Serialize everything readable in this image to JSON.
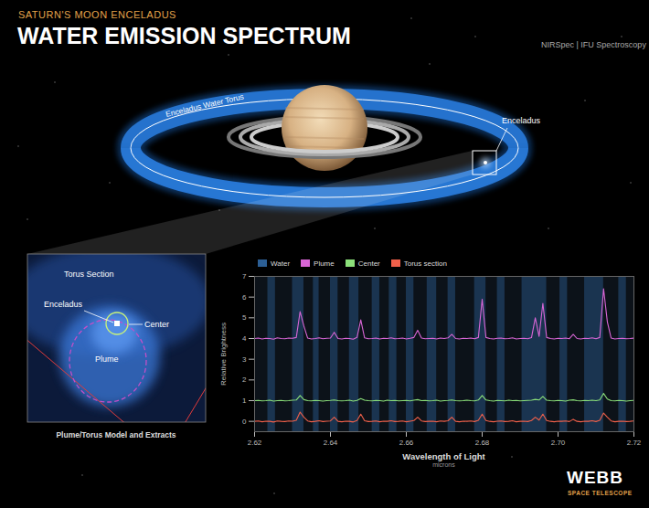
{
  "header": {
    "kicker": "SATURN'S MOON ENCELADUS",
    "title": "WATER EMISSION SPECTRUM",
    "instrument": "NIRSpec | IFU Spectroscopy"
  },
  "illustration": {
    "torus_label": "Enceladus Water Torus",
    "moon_label": "Enceladus"
  },
  "inset": {
    "labels": [
      "Torus Section",
      "Enceladus",
      "Center",
      "Plume"
    ],
    "caption": "Plume/Torus Model and Extracts"
  },
  "logo": {
    "name": "WEBB",
    "subtitle": "SPACE TELESCOPE"
  },
  "chart_data": {
    "type": "line",
    "y_label": "Relative Brightness",
    "x_label": "Wavelength of Light",
    "x_unit": "microns",
    "xlim": [
      2.62,
      2.72
    ],
    "xticks": [
      2.62,
      2.64,
      2.66,
      2.68,
      {
        "value": 2.7,
        "label": "2.70"
      },
      2.72
    ],
    "ylim": [
      -0.5,
      7
    ],
    "yticks": [
      0,
      1,
      2,
      3,
      4,
      5,
      6,
      7
    ],
    "grid": false,
    "water_bands_name": "Water",
    "water_bands_color": "#2c5f95",
    "water_bands": [
      [
        2.6235,
        2.6255
      ],
      [
        2.63,
        2.633
      ],
      [
        2.6355,
        2.637
      ],
      [
        2.64,
        2.642
      ],
      [
        2.645,
        2.6475
      ],
      [
        2.651,
        2.653
      ],
      [
        2.6555,
        2.6575
      ],
      [
        2.66,
        2.662
      ],
      [
        2.6655,
        2.668
      ],
      [
        2.671,
        2.673
      ],
      [
        2.678,
        2.681
      ],
      [
        2.684,
        2.686
      ],
      [
        2.6905,
        2.697
      ],
      [
        2.7005,
        2.7025
      ],
      [
        2.707,
        2.712
      ],
      [
        2.716,
        2.718
      ]
    ],
    "x": [
      2.62,
      2.621,
      2.622,
      2.623,
      2.624,
      2.625,
      2.626,
      2.627,
      2.628,
      2.629,
      2.63,
      2.631,
      2.632,
      2.633,
      2.634,
      2.635,
      2.636,
      2.637,
      2.638,
      2.639,
      2.64,
      2.641,
      2.642,
      2.643,
      2.644,
      2.645,
      2.646,
      2.647,
      2.648,
      2.649,
      2.65,
      2.651,
      2.652,
      2.653,
      2.654,
      2.655,
      2.656,
      2.657,
      2.658,
      2.659,
      2.66,
      2.661,
      2.662,
      2.663,
      2.664,
      2.665,
      2.666,
      2.667,
      2.668,
      2.669,
      2.67,
      2.671,
      2.672,
      2.673,
      2.674,
      2.675,
      2.676,
      2.677,
      2.678,
      2.679,
      2.68,
      2.681,
      2.682,
      2.683,
      2.684,
      2.685,
      2.686,
      2.687,
      2.688,
      2.689,
      2.69,
      2.691,
      2.692,
      2.693,
      2.694,
      2.695,
      2.696,
      2.697,
      2.698,
      2.699,
      2.7,
      2.701,
      2.702,
      2.703,
      2.704,
      2.705,
      2.706,
      2.707,
      2.708,
      2.709,
      2.71,
      2.711,
      2.712,
      2.713,
      2.714,
      2.715,
      2.716,
      2.717,
      2.718,
      2.719,
      2.72
    ],
    "series": [
      {
        "name": "Plume",
        "color": "#d966d6",
        "values": [
          4.0,
          4.02,
          3.98,
          4.01,
          4.0,
          3.97,
          4.03,
          4.0,
          3.99,
          4.02,
          4.01,
          4.05,
          5.3,
          4.6,
          4.02,
          3.98,
          4.0,
          4.03,
          3.99,
          4.01,
          4.02,
          4.3,
          4.0,
          3.98,
          4.01,
          4.0,
          3.97,
          4.05,
          4.9,
          4.03,
          3.99,
          4.0,
          4.02,
          3.98,
          4.01,
          4.0,
          4.03,
          3.99,
          4.0,
          4.02,
          3.98,
          4.01,
          4.05,
          4.4,
          4.02,
          3.99,
          4.0,
          4.01,
          3.98,
          4.02,
          4.0,
          4.03,
          4.2,
          4.0,
          3.98,
          4.01,
          4.0,
          4.02,
          3.99,
          4.05,
          5.9,
          4.05,
          4.0,
          3.98,
          4.01,
          4.02,
          3.99,
          4.0,
          4.03,
          3.98,
          4.0,
          4.01,
          3.99,
          4.04,
          5.0,
          4.1,
          5.7,
          4.05,
          4.0,
          3.98,
          4.01,
          4.0,
          4.02,
          3.99,
          4.2,
          4.0,
          3.98,
          4.01,
          4.0,
          4.03,
          3.99,
          4.05,
          6.4,
          4.8,
          4.02,
          3.98,
          4.0,
          4.01,
          3.99,
          4.0,
          4.02
        ]
      },
      {
        "name": "Center",
        "color": "#8be07a",
        "values": [
          1.0,
          1.01,
          0.99,
          1.0,
          1.02,
          0.98,
          1.0,
          1.01,
          0.99,
          1.0,
          1.02,
          1.03,
          1.25,
          1.05,
          1.0,
          0.99,
          1.01,
          1.0,
          0.98,
          1.0,
          1.01,
          1.03,
          1.0,
          0.99,
          1.0,
          1.02,
          0.98,
          1.01,
          1.1,
          1.02,
          1.0,
          0.99,
          1.01,
          1.0,
          0.98,
          1.02,
          1.0,
          1.01,
          0.99,
          1.0,
          1.01,
          0.99,
          1.02,
          1.05,
          1.0,
          1.01,
          0.99,
          1.0,
          1.02,
          0.98,
          1.0,
          1.01,
          1.03,
          1.0,
          0.99,
          1.0,
          1.02,
          1.0,
          0.99,
          1.03,
          1.25,
          1.03,
          1.0,
          0.98,
          1.01,
          1.0,
          0.99,
          1.02,
          1.0,
          1.01,
          0.99,
          1.0,
          1.01,
          1.02,
          1.06,
          1.03,
          1.2,
          1.02,
          1.0,
          0.99,
          1.01,
          1.0,
          0.98,
          1.02,
          1.04,
          1.0,
          0.99,
          1.01,
          1.0,
          1.02,
          1.0,
          1.03,
          1.35,
          1.08,
          1.0,
          0.99,
          1.01,
          1.0,
          0.98,
          1.0,
          1.01
        ]
      },
      {
        "name": "Torus section",
        "color": "#f0604a",
        "values": [
          0.0,
          0.02,
          -0.02,
          0.01,
          0.0,
          -0.03,
          0.02,
          0.0,
          -0.01,
          0.02,
          0.01,
          0.05,
          0.45,
          0.2,
          0.02,
          -0.02,
          0.0,
          0.03,
          -0.01,
          0.01,
          0.02,
          0.2,
          0.0,
          -0.02,
          0.01,
          0.0,
          -0.03,
          0.04,
          0.35,
          0.03,
          -0.01,
          0.0,
          0.02,
          -0.02,
          0.01,
          0.0,
          0.03,
          -0.01,
          0.0,
          0.02,
          -0.02,
          0.01,
          0.04,
          0.2,
          0.02,
          -0.01,
          0.0,
          0.01,
          -0.02,
          0.02,
          0.0,
          0.03,
          0.2,
          0.0,
          -0.02,
          0.01,
          0.0,
          0.02,
          -0.01,
          0.05,
          0.35,
          0.04,
          0.0,
          -0.02,
          0.01,
          0.02,
          -0.01,
          0.0,
          0.03,
          -0.02,
          0.0,
          0.01,
          -0.01,
          0.04,
          0.2,
          0.06,
          0.35,
          0.04,
          0.0,
          -0.02,
          0.01,
          0.0,
          0.02,
          -0.01,
          0.1,
          0.0,
          -0.02,
          0.01,
          0.0,
          0.03,
          -0.01,
          0.05,
          0.4,
          0.2,
          0.02,
          -0.02,
          0.0,
          0.01,
          -0.01,
          0.0,
          0.02
        ]
      }
    ]
  }
}
